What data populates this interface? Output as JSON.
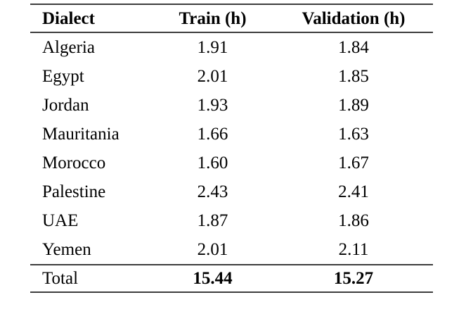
{
  "table": {
    "columns": [
      {
        "label": "Dialect"
      },
      {
        "label": "Train (h)"
      },
      {
        "label": "Validation (h)"
      }
    ],
    "rows": [
      {
        "dialect": "Algeria",
        "train": "1.91",
        "validation": "1.84"
      },
      {
        "dialect": "Egypt",
        "train": "2.01",
        "validation": "1.85"
      },
      {
        "dialect": "Jordan",
        "train": "1.93",
        "validation": "1.89"
      },
      {
        "dialect": "Mauritania",
        "train": "1.66",
        "validation": "1.63"
      },
      {
        "dialect": "Morocco",
        "train": "1.60",
        "validation": "1.67"
      },
      {
        "dialect": "Palestine",
        "train": "2.43",
        "validation": "2.41"
      },
      {
        "dialect": "UAE",
        "train": "1.87",
        "validation": "1.86"
      },
      {
        "dialect": "Yemen",
        "train": "2.01",
        "validation": "2.11"
      }
    ],
    "total": {
      "label": "Total",
      "train": "15.44",
      "validation": "15.27"
    }
  },
  "colors": {
    "text": "#000000",
    "rule": "#3d3d3d",
    "background": "#ffffff"
  }
}
